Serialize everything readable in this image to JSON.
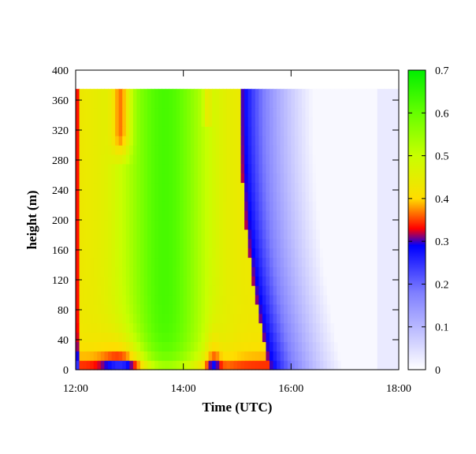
{
  "chart_data": {
    "type": "heatmap",
    "title": "",
    "xlabel": "Time (UTC)",
    "ylabel": "height (m)",
    "x_ticks": [
      "12:00",
      "14:00",
      "16:00",
      "18:00"
    ],
    "x_tick_hours": [
      12,
      14,
      16,
      18
    ],
    "xlim_hours": [
      12,
      18
    ],
    "y_ticks": [
      0,
      40,
      80,
      120,
      160,
      200,
      240,
      280,
      320,
      360,
      400
    ],
    "ylim": [
      0,
      400
    ],
    "data_top_height_m": 375,
    "colorbar": {
      "ticks": [
        0,
        0.1,
        0.2,
        0.3,
        0.4,
        0.5,
        0.6,
        0.7
      ],
      "tick_labels": [
        "0",
        "0.1",
        "0.2",
        "0.3",
        "0.4",
        "0.5",
        "0.6",
        "0.7"
      ],
      "range": [
        0,
        0.7
      ],
      "palette": [
        {
          "v": 0.0,
          "color": "#ffffff"
        },
        {
          "v": 0.18,
          "color": "#7f7fff"
        },
        {
          "v": 0.29,
          "color": "#0000ff"
        },
        {
          "v": 0.33,
          "color": "#ff0000"
        },
        {
          "v": 0.4,
          "color": "#ffdd00"
        },
        {
          "v": 0.5,
          "color": "#c8ff00"
        },
        {
          "v": 0.6,
          "color": "#66ff00"
        },
        {
          "v": 0.7,
          "color": "#00ee00"
        }
      ]
    },
    "grid": false
  }
}
